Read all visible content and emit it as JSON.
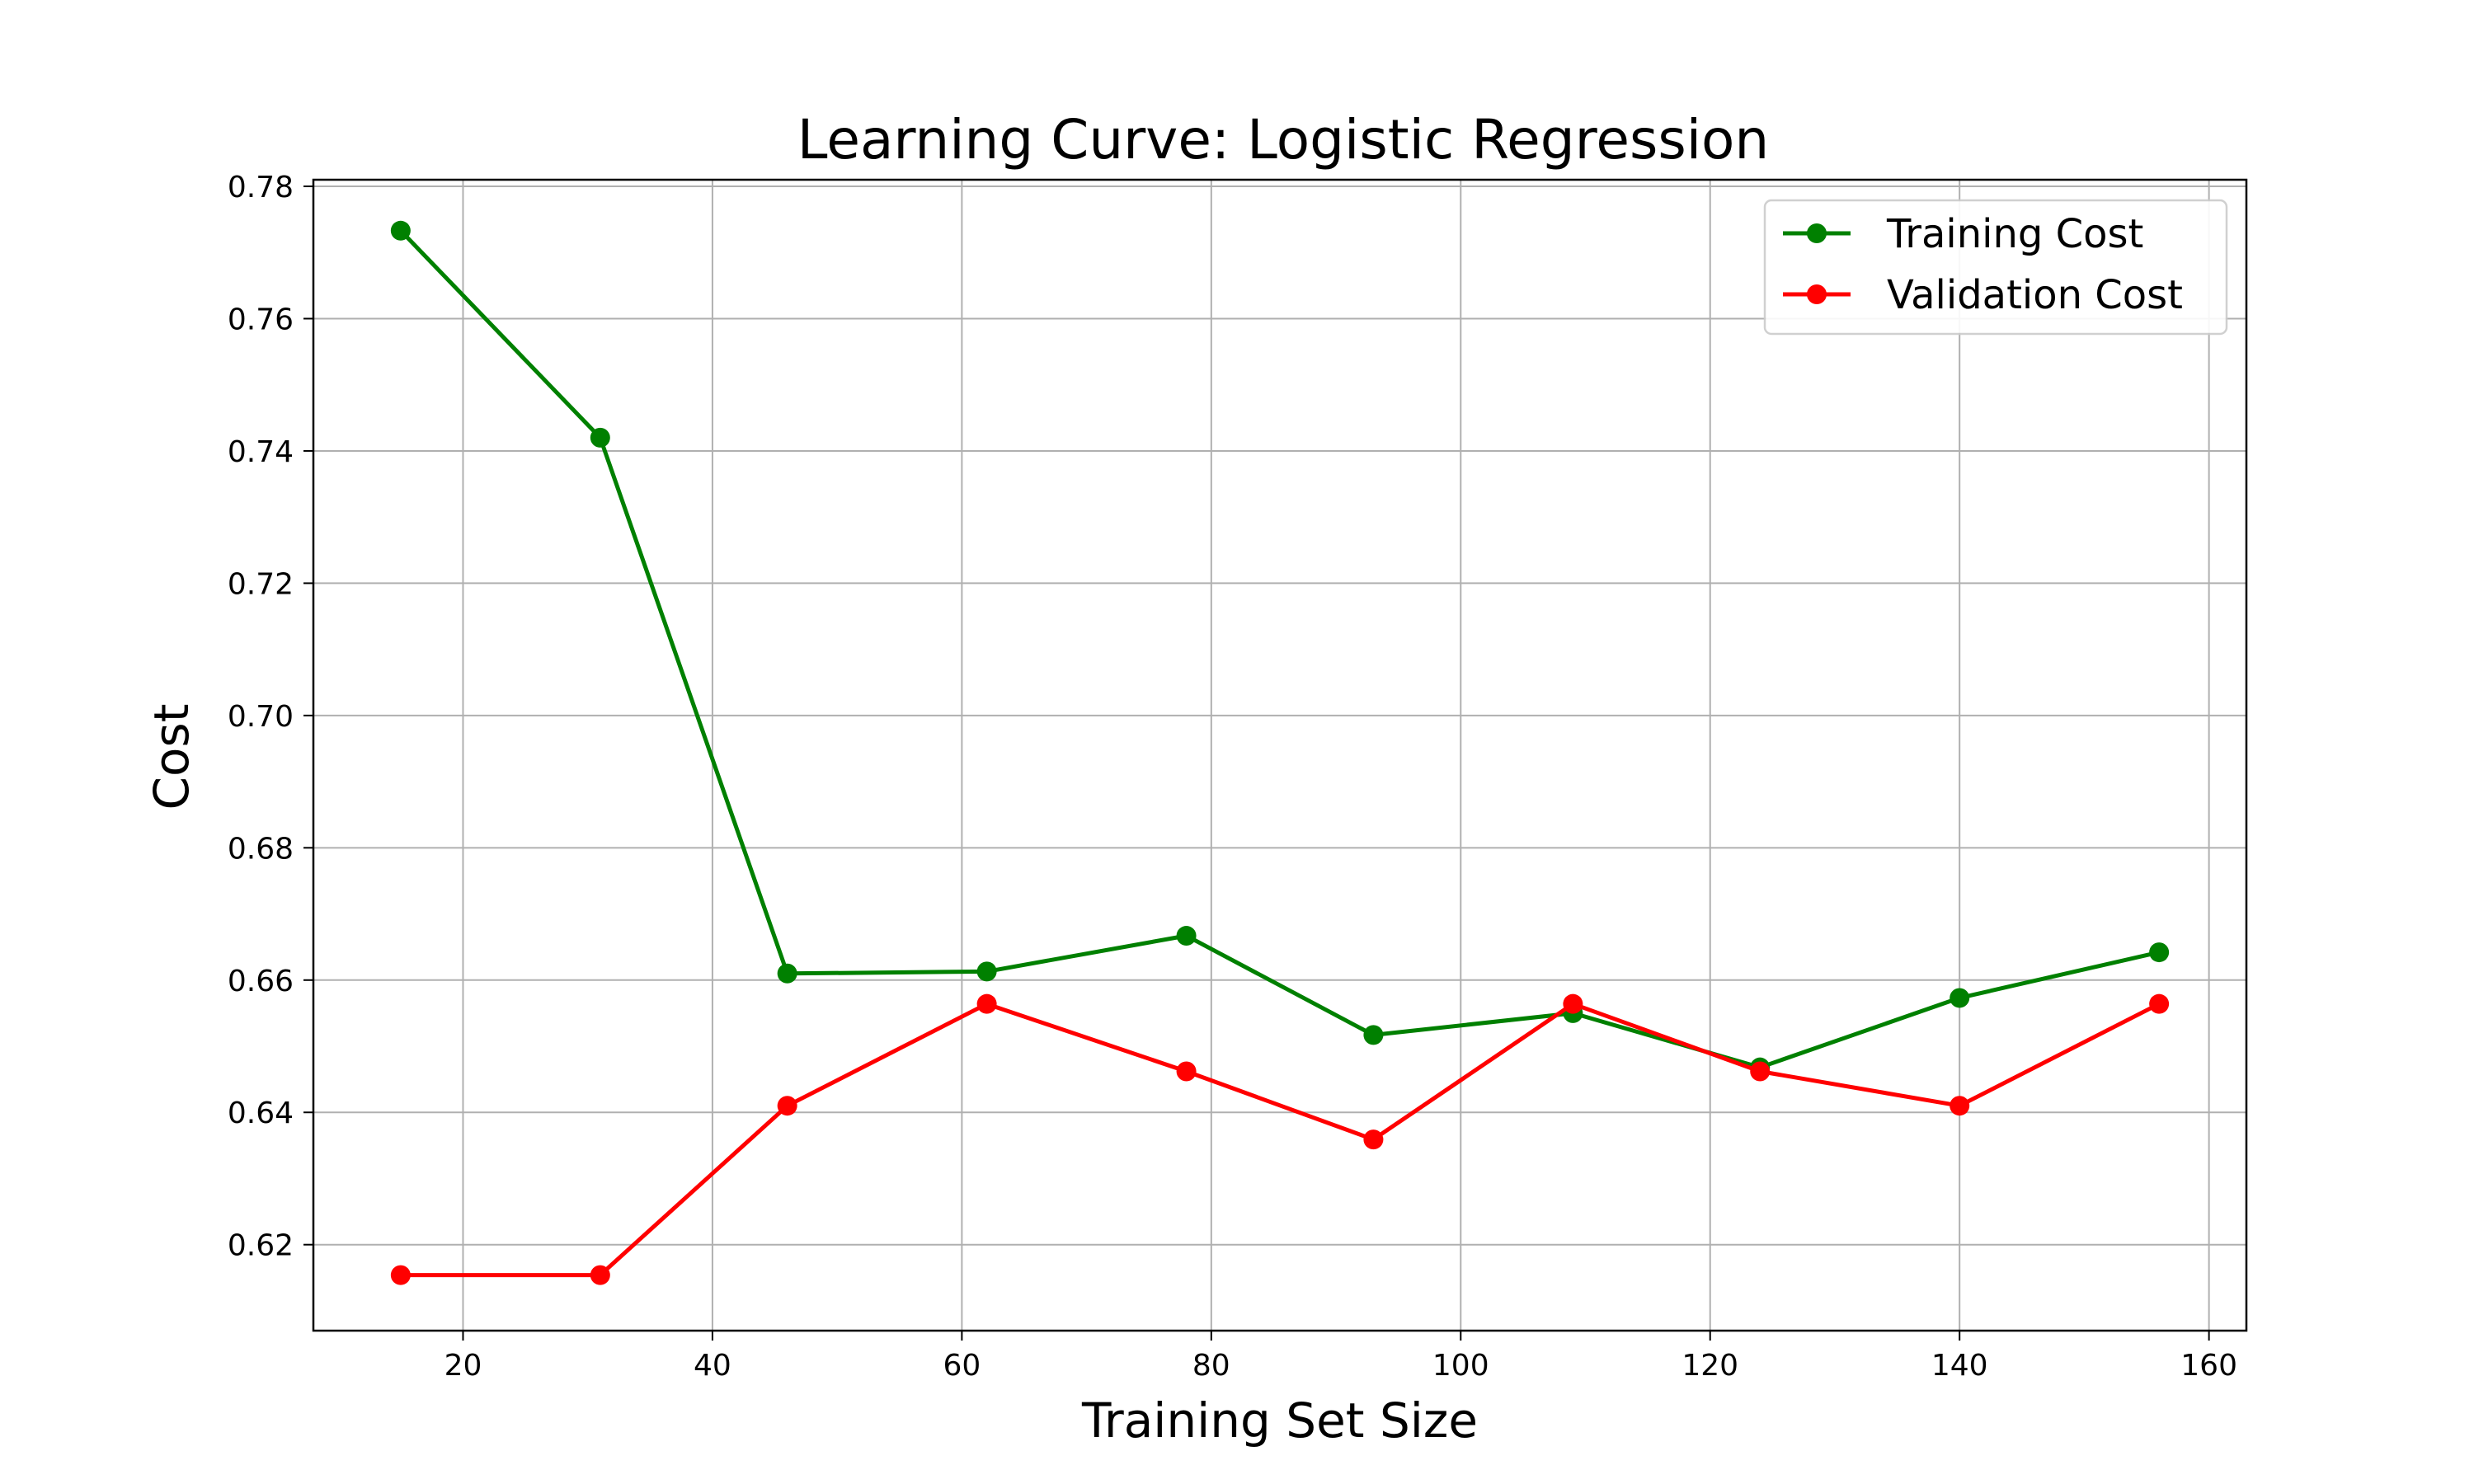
{
  "chart_data": {
    "type": "line",
    "title": "Learning Curve: Logistic Regression",
    "xlabel": "Training Set Size",
    "ylabel": "Cost",
    "x": [
      15,
      31,
      46,
      62,
      78,
      93,
      109,
      124,
      140,
      156
    ],
    "xlim": [
      8,
      163
    ],
    "ylim": [
      0.607,
      0.781
    ],
    "xticks": [
      20,
      40,
      60,
      80,
      100,
      120,
      140,
      160
    ],
    "yticks": [
      0.62,
      0.64,
      0.66,
      0.68,
      0.7,
      0.72,
      0.74,
      0.76,
      0.78
    ],
    "xtick_labels": [
      "20",
      "40",
      "60",
      "80",
      "100",
      "120",
      "140",
      "160"
    ],
    "ytick_labels": [
      "0.62",
      "0.64",
      "0.66",
      "0.68",
      "0.70",
      "0.72",
      "0.74",
      "0.76",
      "0.78"
    ],
    "grid": true,
    "legend_position": "upper right",
    "series": [
      {
        "name": "Training Cost",
        "color": "#008000",
        "marker": "circle",
        "values": [
          0.7733,
          0.742,
          0.661,
          0.6613,
          0.6667,
          0.6517,
          0.655,
          0.6468,
          0.6573,
          0.6642
        ]
      },
      {
        "name": "Validation Cost",
        "color": "#ff0000",
        "marker": "circle",
        "values": [
          0.6154,
          0.6154,
          0.641,
          0.6564,
          0.6462,
          0.6359,
          0.6564,
          0.6462,
          0.641,
          0.6564
        ]
      }
    ]
  }
}
